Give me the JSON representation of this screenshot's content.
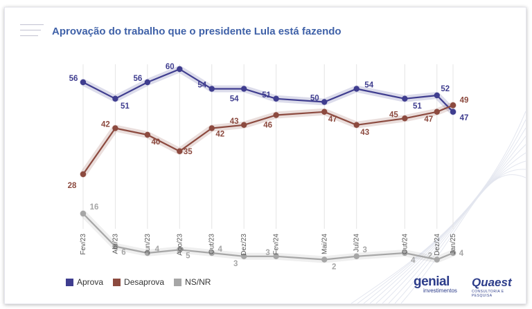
{
  "title": "Aprovação do trabalho que o presidente Lula está fazendo",
  "legend": {
    "aprova": "Aprova",
    "desaprova": "Desaprova",
    "nsnr": "NS/NR"
  },
  "brands": {
    "genial_name": "genial",
    "genial_sub": "investimentos",
    "quaest_name": "Quaest",
    "quaest_sub": "CONSULTORIA E PESQUISA"
  },
  "colors": {
    "aprova": "#3f3d8f",
    "desaprova": "#8c4a3f",
    "nsnr": "#a6a6a6",
    "title": "#3f61a8"
  },
  "chart_data": {
    "type": "line",
    "title": "Aprovação do trabalho que o presidente Lula está fazendo",
    "xlabel": "",
    "ylabel": "",
    "x": [
      "Fev/23",
      "Abr/23",
      "Jun/23",
      "Ago/23",
      "Out/23",
      "Dez/23",
      "Fev/24",
      "Mai/24",
      "Jul/24",
      "Out/24",
      "Dez/24",
      "Jan/25"
    ],
    "x_months": [
      0,
      2,
      4,
      6,
      8,
      10,
      12,
      15,
      17,
      20,
      22,
      23
    ],
    "series": [
      {
        "name": "Aprova",
        "color": "#3f3d8f",
        "values": [
          56,
          51,
          56,
          60,
          54,
          54,
          51,
          50,
          54,
          51,
          52,
          47
        ]
      },
      {
        "name": "Desaprova",
        "color": "#8c4a3f",
        "values": [
          28,
          42,
          40,
          35,
          42,
          43,
          46,
          47,
          43,
          45,
          47,
          49
        ]
      },
      {
        "name": "NS/NR",
        "color": "#a6a6a6",
        "values": [
          16,
          6,
          4,
          5,
          4,
          3,
          3,
          2,
          3,
          4,
          2,
          4
        ]
      }
    ],
    "grid": "vertical",
    "legend_position": "bottom-left"
  }
}
